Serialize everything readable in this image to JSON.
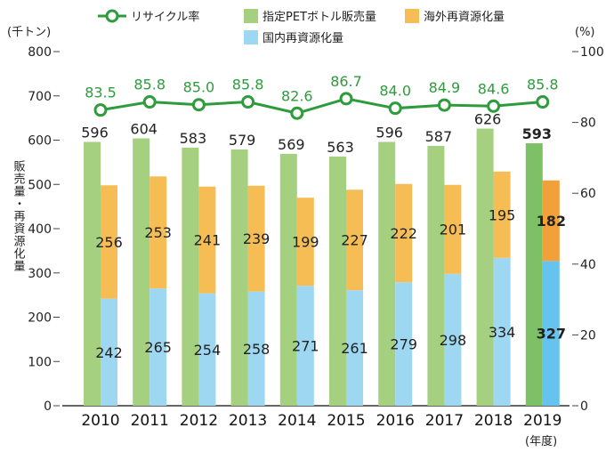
{
  "chart_data": {
    "type": "bar",
    "categories": [
      "2010",
      "2011",
      "2012",
      "2013",
      "2014",
      "2015",
      "2016",
      "2017",
      "2018",
      "2019"
    ],
    "year_unit_label": "(年度)",
    "left_axis": {
      "unit": "(千トン)",
      "label": "販売量・再資源化量",
      "ylim": [
        0,
        800
      ],
      "ticks": [
        "0",
        "100",
        "200",
        "300",
        "400",
        "500",
        "600",
        "700",
        "800"
      ]
    },
    "right_axis": {
      "unit": "(%)",
      "ylim": [
        0,
        100
      ],
      "ticks": [
        "0",
        "20",
        "40",
        "60",
        "80",
        "100"
      ]
    },
    "series": [
      {
        "name": "指定PETボトル販売量",
        "color": "#a4d07f",
        "color_highlight": "#7ec065",
        "values": [
          596,
          604,
          583,
          579,
          569,
          563,
          596,
          587,
          626,
          593
        ],
        "labels": [
          "596",
          "604",
          "583",
          "579",
          "569",
          "563",
          "596",
          "587",
          "626",
          "593"
        ]
      },
      {
        "name": "国内再資源化量",
        "color": "#9dd7f2",
        "color_highlight": "#66c3ee",
        "values": [
          242,
          265,
          254,
          258,
          271,
          261,
          279,
          298,
          334,
          327
        ],
        "labels": [
          "242",
          "265",
          "254",
          "258",
          "271",
          "261",
          "279",
          "298",
          "334",
          "327"
        ]
      },
      {
        "name": "海外再資源化量",
        "color": "#f7bd55",
        "color_highlight": "#f2a03a",
        "values": [
          256,
          253,
          241,
          239,
          199,
          227,
          222,
          201,
          195,
          182
        ],
        "labels": [
          "256",
          "253",
          "241",
          "239",
          "199",
          "227",
          "222",
          "201",
          "195",
          "182"
        ]
      },
      {
        "name": "リサイクル率",
        "type": "line",
        "axis": "right",
        "color": "#2e9c3c",
        "values": [
          83.5,
          85.8,
          85.0,
          85.8,
          82.6,
          86.7,
          84.0,
          84.9,
          84.6,
          85.8
        ],
        "labels": [
          "83.5",
          "85.8",
          "85.0",
          "85.8",
          "82.6",
          "86.7",
          "84.0",
          "84.9",
          "84.6",
          "85.8"
        ]
      }
    ],
    "highlight_category": "2019",
    "legend_position": "top"
  }
}
